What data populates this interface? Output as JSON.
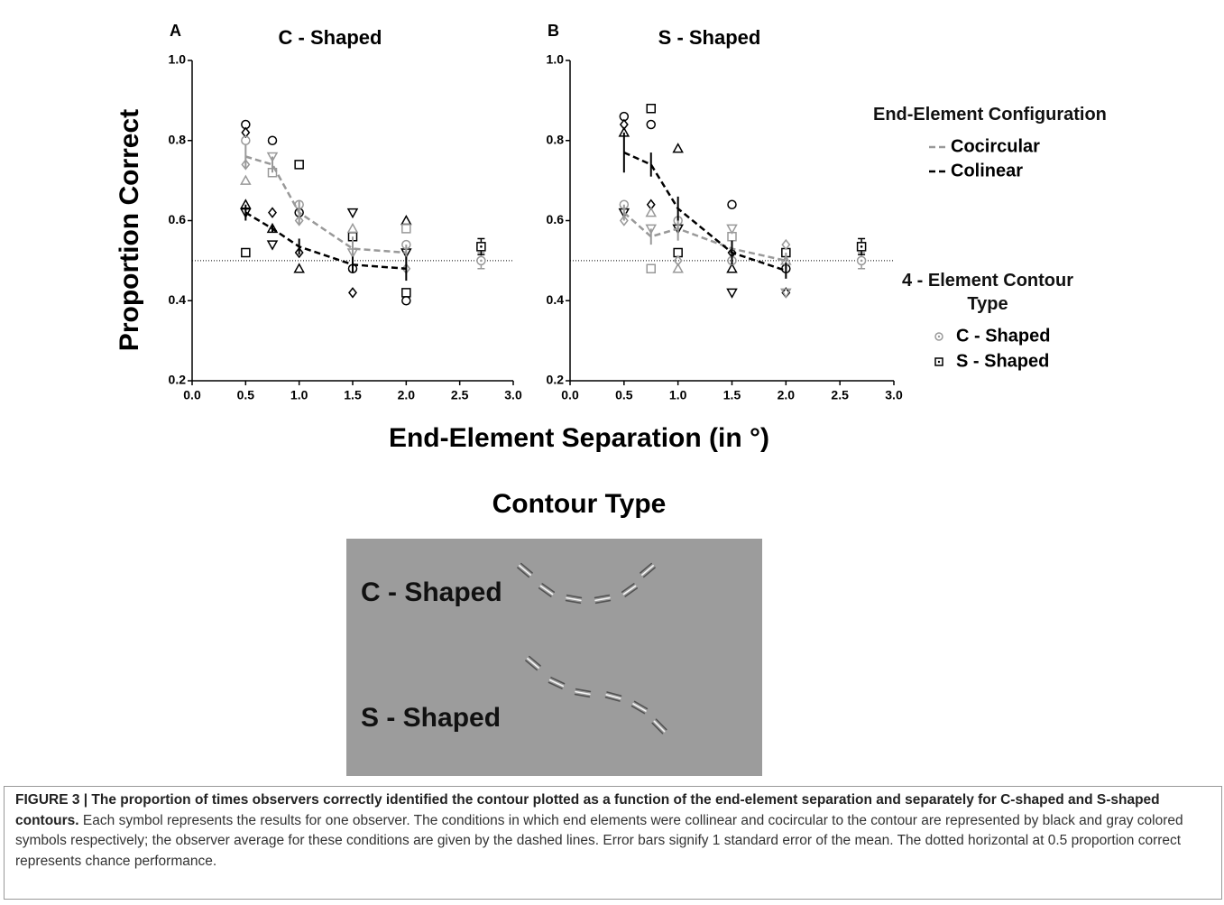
{
  "chart_data": [
    {
      "type": "line",
      "label": "A",
      "title": "C - Shaped",
      "xlim": [
        0,
        3
      ],
      "ylim": [
        0.2,
        1.0
      ],
      "xticks": [
        {
          "value": 0,
          "label": "0.0"
        },
        0.5,
        {
          "value": 1,
          "label": "1.0"
        },
        1.5,
        {
          "value": 2,
          "label": "2.0"
        },
        2.5,
        {
          "value": 3,
          "label": "3.0"
        }
      ],
      "yticks": [
        0.2,
        0.4,
        0.6,
        0.8,
        {
          "value": 1,
          "label": "1.0"
        }
      ],
      "chance_line": 0.5,
      "series": [
        {
          "name": "Cocircular",
          "color": "#999999",
          "x": [
            0.5,
            0.75,
            1,
            1.5,
            2
          ],
          "values": [
            0.76,
            0.74,
            0.62,
            0.53,
            0.52
          ],
          "errors": [
            0.03,
            0.02,
            0.03,
            0.03,
            0.02
          ]
        },
        {
          "name": "Colinear",
          "color": "#000000",
          "x": [
            0.5,
            0.75,
            1,
            1.5,
            2
          ],
          "values": [
            0.62,
            0.58,
            0.535,
            0.49,
            0.48
          ],
          "errors": [
            0.02,
            0.01,
            0.02,
            0.02,
            0.03
          ]
        }
      ],
      "pooled": [
        {
          "name": "C - Shaped",
          "color": "#999999",
          "marker": "circle",
          "x": [
            2.7
          ],
          "values": [
            0.5
          ],
          "errors": [
            0.02
          ]
        },
        {
          "name": "S - Shaped",
          "color": "#000000",
          "marker": "square",
          "x": [
            2.7
          ],
          "values": [
            0.535
          ],
          "errors": [
            0.02
          ]
        }
      ],
      "observers": [
        {
          "color": "#000000",
          "x": [
            0.5,
            0.5,
            0.5,
            0.5,
            0.5,
            0.75,
            0.75,
            0.75,
            0.75,
            1,
            1,
            1,
            1,
            1.5,
            1.5,
            1.5,
            1.5,
            2,
            2,
            2,
            2
          ],
          "values": [
            0.84,
            0.82,
            0.64,
            0.62,
            0.52,
            0.8,
            0.62,
            0.58,
            0.54,
            0.74,
            0.62,
            0.52,
            0.48,
            0.62,
            0.56,
            0.48,
            0.42,
            0.6,
            0.52,
            0.42,
            0.4
          ]
        },
        {
          "color": "#999999",
          "x": [
            0.5,
            0.5,
            0.5,
            0.75,
            0.75,
            1,
            1,
            1.5,
            1.5,
            2,
            2,
            2
          ],
          "values": [
            0.8,
            0.74,
            0.7,
            0.76,
            0.72,
            0.64,
            0.6,
            0.58,
            0.52,
            0.58,
            0.54,
            0.48
          ]
        }
      ]
    },
    {
      "type": "line",
      "label": "B",
      "title": "S - Shaped",
      "xlim": [
        0,
        3
      ],
      "ylim": [
        0.2,
        1.0
      ],
      "xticks": [
        {
          "value": 0,
          "label": "0.0"
        },
        0.5,
        {
          "value": 1,
          "label": "1.0"
        },
        1.5,
        {
          "value": 2,
          "label": "2.0"
        },
        2.5,
        {
          "value": 3,
          "label": "3.0"
        }
      ],
      "yticks": [
        0.2,
        0.4,
        0.6,
        0.8,
        {
          "value": 1,
          "label": "1.0"
        }
      ],
      "chance_line": 0.5,
      "series": [
        {
          "name": "Cocircular",
          "color": "#999999",
          "x": [
            0.5,
            0.75,
            1,
            1.5,
            2
          ],
          "values": [
            0.62,
            0.56,
            0.58,
            0.53,
            0.5
          ],
          "errors": [
            0.02,
            0.02,
            0.03,
            0.02,
            0.02
          ]
        },
        {
          "name": "Colinear",
          "color": "#000000",
          "x": [
            0.5,
            0.75,
            1,
            1.5,
            2
          ],
          "values": [
            0.77,
            0.74,
            0.63,
            0.52,
            0.475
          ],
          "errors": [
            0.05,
            0.03,
            0.03,
            0.03,
            0.02
          ]
        }
      ],
      "pooled": [
        {
          "name": "C - Shaped",
          "color": "#999999",
          "marker": "circle",
          "x": [
            2.7
          ],
          "values": [
            0.5
          ],
          "errors": [
            0.02
          ]
        },
        {
          "name": "S - Shaped",
          "color": "#000000",
          "marker": "square",
          "x": [
            2.7
          ],
          "values": [
            0.535
          ],
          "errors": [
            0.02
          ]
        }
      ],
      "observers": [
        {
          "color": "#000000",
          "x": [
            0.5,
            0.5,
            0.5,
            0.5,
            0.75,
            0.75,
            0.75,
            1,
            1,
            1,
            1.5,
            1.5,
            1.5,
            1.5,
            2,
            2,
            2
          ],
          "values": [
            0.86,
            0.84,
            0.82,
            0.62,
            0.88,
            0.84,
            0.64,
            0.78,
            0.58,
            0.52,
            0.64,
            0.52,
            0.48,
            0.42,
            0.52,
            0.48,
            0.42
          ]
        },
        {
          "color": "#999999",
          "x": [
            0.5,
            0.5,
            0.75,
            0.75,
            0.75,
            1,
            1,
            1,
            1.5,
            1.5,
            1.5,
            2,
            2,
            2
          ],
          "values": [
            0.64,
            0.6,
            0.62,
            0.58,
            0.48,
            0.6,
            0.5,
            0.48,
            0.58,
            0.56,
            0.5,
            0.54,
            0.5,
            0.42
          ]
        }
      ]
    }
  ],
  "y_axis_label": "Proportion Correct",
  "x_axis_label": "End-Element Separation (in °)",
  "legend_configuration_title": "End-Element Configuration",
  "legend_contour_title": "4 - Element Contour Type",
  "contour_panel": {
    "title": "Contour Type",
    "labels": [
      "C - Shaped",
      "S - Shaped"
    ]
  },
  "caption": {
    "bold": "FIGURE 3 | The proportion of times observers correctly identified the contour plotted as a function of the end-element separation and separately for C-shaped and S-shaped contours.",
    "text": " Each symbol represents the results for one observer. The conditions in which end elements were collinear and cocircular to the contour are represented by black and gray colored symbols respectively; the observer average for these conditions are given by the dashed lines. Error bars signify 1 standard error of the mean. The dotted horizontal at 0.5 proportion correct represents chance performance."
  }
}
